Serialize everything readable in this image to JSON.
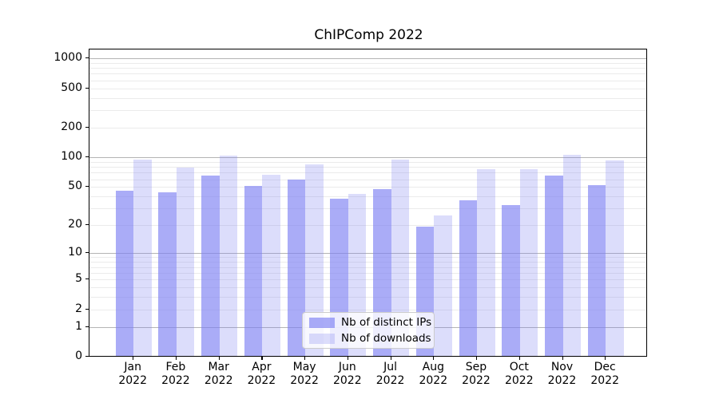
{
  "chart_data": {
    "type": "bar",
    "title": "ChIPComp 2022",
    "categories": [
      "Jan 2022",
      "Feb 2022",
      "Mar 2022",
      "Apr 2022",
      "May 2022",
      "Jun 2022",
      "Jul 2022",
      "Aug 2022",
      "Sep 2022",
      "Oct 2022",
      "Nov 2022",
      "Dec 2022"
    ],
    "x_tick_months": [
      "Jan",
      "Feb",
      "Mar",
      "Apr",
      "May",
      "Jun",
      "Jul",
      "Aug",
      "Sep",
      "Oct",
      "Nov",
      "Dec"
    ],
    "x_tick_year": "2022",
    "series": [
      {
        "name": "Nb of distinct IPs",
        "color": "rgba(125,128,242,0.65)",
        "values": [
          45,
          43,
          64,
          50,
          58,
          37,
          47,
          19,
          36,
          32,
          64,
          51
        ]
      },
      {
        "name": "Nb of downloads",
        "color": "rgba(125,128,242,0.27)",
        "values": [
          94,
          77,
          102,
          66,
          83,
          42,
          93,
          25,
          74,
          75,
          105,
          92
        ]
      }
    ],
    "y_ticks": [
      0,
      1,
      2,
      5,
      10,
      20,
      50,
      100,
      200,
      500,
      1000
    ],
    "y_scale": "log10(value+1)",
    "ylim": [
      0,
      1228
    ],
    "grid": "horizontal major+minor",
    "legend_position": "inside-bottom-center",
    "colors": {
      "bar_dark": "rgba(125,128,242,0.65)",
      "bar_light": "rgba(125,128,242,0.27)",
      "grid_major": "#b4b4b4",
      "grid_minor": "#ebebeb",
      "axis": "#000000",
      "background": "#ffffff"
    }
  }
}
